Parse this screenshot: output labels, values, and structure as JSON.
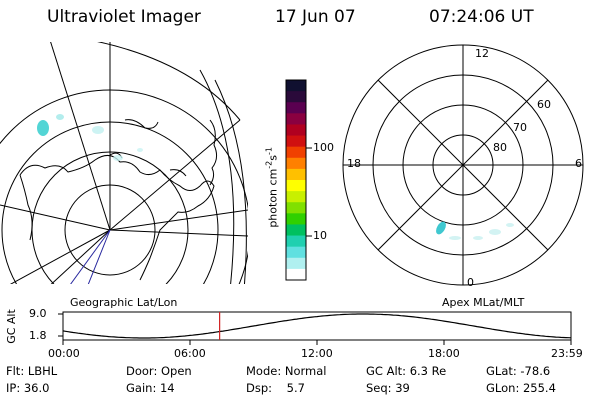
{
  "header": {
    "title": "Ultraviolet Imager",
    "date": "17 Jun 07",
    "time": "07:24:06 UT"
  },
  "left_map": {
    "label": "Geographic Lat/Lon"
  },
  "right_map": {
    "label": "Apex MLat/MLT",
    "mlt_labels": {
      "top": "12",
      "left": "18",
      "right": "6",
      "bottom": "0"
    },
    "lat_labels": [
      "60",
      "70",
      "80"
    ]
  },
  "colorbar": {
    "unit_label": "photon cm-2s-1",
    "ticks": [
      "100",
      "10"
    ],
    "colors": [
      "#101030",
      "#2a0a3a",
      "#5a0050",
      "#8a0040",
      "#b00020",
      "#d01010",
      "#f04000",
      "#ff8000",
      "#ffc000",
      "#ffff00",
      "#c8f000",
      "#80e000",
      "#30d000",
      "#00c060",
      "#20d0b0",
      "#60e0e0",
      "#b0f0f0",
      "#ffffff"
    ]
  },
  "altitude_plot": {
    "axis_label": "GC Alt",
    "y_ticks": [
      "9.0",
      "1.8"
    ],
    "x_ticks": [
      "00:00",
      "06:00",
      "12:00",
      "18:00",
      "23:59"
    ],
    "current_time_hours": 7.4
  },
  "footer": {
    "col1": [
      "Flt: LBHL",
      "IP: 36.0"
    ],
    "col2": [
      "Door: Open",
      "Gain: 14"
    ],
    "col3": [
      "Mode: Normal",
      "Dsp:    5.7"
    ],
    "col4": [
      "GC Alt: 6.3 Re",
      "Seq: 39"
    ],
    "col5": [
      "GLat: -78.6",
      "GLon: 255.4"
    ]
  }
}
